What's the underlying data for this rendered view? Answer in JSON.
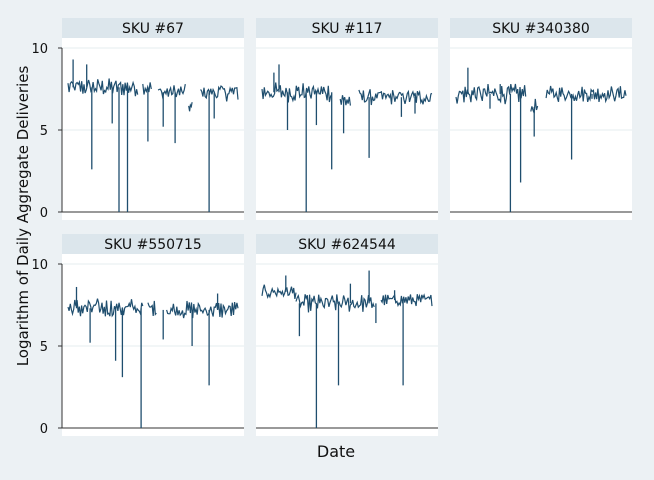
{
  "chart_data": {
    "type": "line",
    "xlabel": "Date",
    "ylabel": "Logarithm of Daily Aggregate Deliveries",
    "ylim": [
      0,
      10
    ],
    "yticks": [
      0,
      5,
      10
    ],
    "grid": true,
    "line_color": "#1f4e6e",
    "panels": [
      {
        "title": "SKU #67",
        "segments": [
          {
            "x_range": [
              0,
              0.41
            ],
            "level": 7.6,
            "amp": 0.45
          },
          {
            "x_range": [
              0.44,
              0.49
            ],
            "level": 7.6,
            "amp": 0.35
          },
          {
            "x_range": [
              0.53,
              0.69
            ],
            "level": 7.3,
            "amp": 0.4
          },
          {
            "x_range": [
              0.71,
              0.73
            ],
            "level": 6.4,
            "amp": 0.3
          },
          {
            "x_range": [
              0.78,
              1.0
            ],
            "level": 7.3,
            "amp": 0.45
          }
        ],
        "spikes": [
          [
            0.03,
            9.3
          ],
          [
            0.11,
            9.0
          ],
          [
            0.14,
            2.6
          ],
          [
            0.26,
            5.4
          ],
          [
            0.3,
            0
          ],
          [
            0.35,
            0
          ],
          [
            0.47,
            4.3
          ],
          [
            0.56,
            5.2
          ],
          [
            0.63,
            4.2
          ],
          [
            0.83,
            0
          ],
          [
            0.86,
            5.7
          ]
        ]
      },
      {
        "title": "SKU #117",
        "segments": [
          {
            "x_range": [
              0,
              0.41
            ],
            "level": 7.3,
            "amp": 0.5
          },
          {
            "x_range": [
              0.46,
              0.52
            ],
            "level": 6.8,
            "amp": 0.5
          },
          {
            "x_range": [
              0.57,
              1.0
            ],
            "level": 7.0,
            "amp": 0.4
          }
        ],
        "spikes": [
          [
            0.07,
            8.5
          ],
          [
            0.1,
            9.0
          ],
          [
            0.15,
            5.0
          ],
          [
            0.26,
            0
          ],
          [
            0.32,
            5.3
          ],
          [
            0.41,
            2.6
          ],
          [
            0.48,
            4.8
          ],
          [
            0.63,
            3.3
          ],
          [
            0.82,
            5.8
          ],
          [
            0.9,
            6.0
          ]
        ]
      },
      {
        "title": "SKU #340380",
        "segments": [
          {
            "x_range": [
              0,
              0.41
            ],
            "level": 7.2,
            "amp": 0.5
          },
          {
            "x_range": [
              0.44,
              0.48
            ],
            "level": 6.4,
            "amp": 0.4
          },
          {
            "x_range": [
              0.53,
              1.0
            ],
            "level": 7.2,
            "amp": 0.4
          }
        ],
        "spikes": [
          [
            0.07,
            8.8
          ],
          [
            0.2,
            6.3
          ],
          [
            0.26,
            7.8
          ],
          [
            0.32,
            0
          ],
          [
            0.38,
            1.8
          ],
          [
            0.46,
            4.6
          ],
          [
            0.52,
            7.2
          ],
          [
            0.68,
            3.2
          ],
          [
            0.8,
            6.9
          ]
        ]
      },
      {
        "title": "SKU #550715",
        "segments": [
          {
            "x_range": [
              0,
              0.44
            ],
            "level": 7.3,
            "amp": 0.5
          },
          {
            "x_range": [
              0.47,
              0.52
            ],
            "level": 7.3,
            "amp": 0.4
          },
          {
            "x_range": [
              0.58,
              1.0
            ],
            "level": 7.2,
            "amp": 0.45
          }
        ],
        "spikes": [
          [
            0.05,
            8.6
          ],
          [
            0.13,
            5.2
          ],
          [
            0.28,
            4.1
          ],
          [
            0.32,
            3.1
          ],
          [
            0.43,
            0
          ],
          [
            0.56,
            5.4
          ],
          [
            0.73,
            5.0
          ],
          [
            0.83,
            2.6
          ],
          [
            0.88,
            8.2
          ]
        ]
      },
      {
        "title": "SKU #624544",
        "segments": [
          {
            "x_range": [
              0,
              0.2
            ],
            "level": 8.3,
            "amp": 0.35
          },
          {
            "x_range": [
              0.2,
              0.66
            ],
            "level": 7.6,
            "amp": 0.45
          },
          {
            "x_range": [
              0.7,
              1.0
            ],
            "level": 7.8,
            "amp": 0.3
          }
        ],
        "spikes": [
          [
            0.14,
            9.3
          ],
          [
            0.22,
            5.6
          ],
          [
            0.32,
            0
          ],
          [
            0.45,
            2.6
          ],
          [
            0.52,
            8.8
          ],
          [
            0.63,
            9.6
          ],
          [
            0.67,
            6.4
          ],
          [
            0.83,
            2.6
          ],
          [
            0.78,
            8.4
          ]
        ]
      }
    ]
  }
}
